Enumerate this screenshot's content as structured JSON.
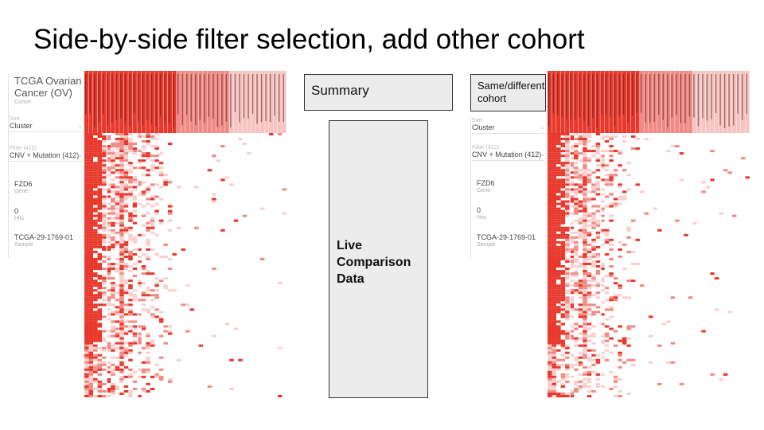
{
  "slide": {
    "title": "Side-by-side filter selection, add other cohort"
  },
  "left_panel": {
    "cohort_name": "TCGA Ovarian Cancer (OV)",
    "cohort_label": "Cohort",
    "sort_label": "Sort",
    "sort_value": "Cluster",
    "filter_label": "Filter (412)",
    "filter_value": "CNV + Mutation (412)",
    "gene_value": "FZD6",
    "gene_label": "Gene",
    "hits_value": "0",
    "hits_label": "Hits",
    "sample_value": "TCGA-29-1769-01",
    "sample_label": "Sample"
  },
  "right_panel": {
    "sort_label": "Sort",
    "sort_value": "Cluster",
    "filter_label": "Filter (412)",
    "filter_value": "CNV + Mutation (412)",
    "gene_value": "FZD6",
    "gene_label": "Gene",
    "hits_value": "0",
    "hits_label": "Hits",
    "sample_value": "TCGA-29-1769-01",
    "sample_label": "Sample"
  },
  "boxes": {
    "summary": "Summary",
    "same_cohort": "Same/different cohort",
    "live_comparison": "Live Comparison Data"
  },
  "colors": {
    "heat_high": "#e8382c",
    "heat_mid": "#f08a84",
    "heat_low": "#f8d0cd",
    "box_fill": "#ececec",
    "box_border": "#333333"
  }
}
